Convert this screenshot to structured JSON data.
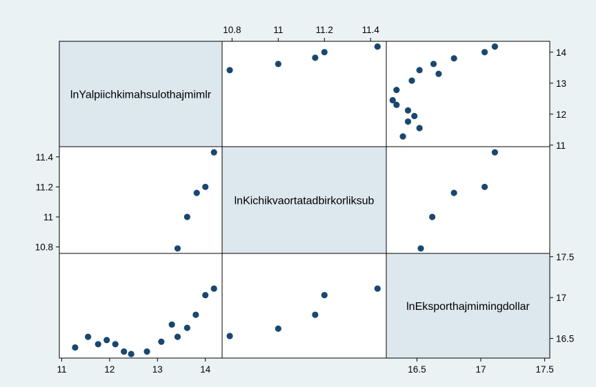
{
  "colors": {
    "background": "#eaf2f3",
    "plot_region": "#ffffff",
    "diagonal_fill": "#dde7ee",
    "marker": "#1a476f",
    "frame": "#000000"
  },
  "chart_data": {
    "type": "scatter",
    "subtype": "scatter-matrix",
    "title": "",
    "grid": false,
    "legend": "none",
    "variables": [
      {
        "label": "lnYalpiichkimahsulothajmimlr",
        "range": [
          10.95,
          14.35
        ],
        "ticks": [
          11,
          12,
          13,
          14
        ],
        "tick_labels": [
          "11",
          "12",
          "13",
          "14"
        ]
      },
      {
        "label": "lnKichikvaortatadbirkorliksub",
        "range": [
          10.757,
          11.468
        ],
        "ticks": [
          10.8,
          11,
          11.2,
          11.4
        ],
        "tick_labels": [
          "10.8",
          "11",
          "11.2",
          "11.4"
        ]
      },
      {
        "label": "lnEksporthajmimingdollar",
        "range": [
          16.26,
          17.54
        ],
        "ticks": [
          16.5,
          17,
          17.5
        ],
        "tick_labels": [
          "16.5",
          "17",
          "17.5"
        ]
      }
    ],
    "pairs_12": {
      "x_var": "lnYalpiichkimahsulothajmimlr",
      "y_var": "lnKichikvaortatadbirkorliksub",
      "points": [
        [
          13.42,
          10.79
        ],
        [
          13.62,
          11.0
        ],
        [
          13.82,
          11.16
        ],
        [
          14.0,
          11.2
        ],
        [
          14.18,
          11.43
        ]
      ]
    },
    "pairs_13": {
      "x_var": "lnYalpiichkimahsulothajmimlr",
      "y_var": "lnEksporthajmimingdollar",
      "points": [
        [
          11.28,
          16.39
        ],
        [
          11.55,
          16.52
        ],
        [
          11.76,
          16.43
        ],
        [
          11.94,
          16.48
        ],
        [
          12.12,
          16.43
        ],
        [
          12.3,
          16.34
        ],
        [
          12.45,
          16.31
        ],
        [
          12.78,
          16.34
        ],
        [
          13.08,
          16.46
        ],
        [
          13.3,
          16.67
        ],
        [
          13.42,
          16.52
        ],
        [
          13.62,
          16.63
        ],
        [
          13.8,
          16.79
        ],
        [
          14.0,
          17.03
        ],
        [
          14.18,
          17.11
        ]
      ]
    },
    "pairs_23": {
      "x_var": "lnKichikvaortatadbirkorliksub",
      "y_var": "lnEksporthajmimingdollar",
      "points": [
        [
          10.79,
          16.53
        ],
        [
          11.0,
          16.62
        ],
        [
          11.16,
          16.79
        ],
        [
          11.2,
          17.03
        ],
        [
          11.43,
          17.11
        ]
      ]
    }
  }
}
